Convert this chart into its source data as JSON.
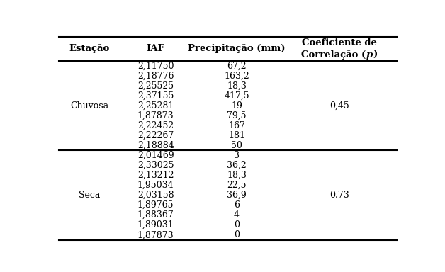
{
  "headers": [
    "Estação",
    "IAF",
    "Precipitação (mm)",
    "Coeficiente de",
    "Correlação (",
    "p",
    ")"
  ],
  "chuvosa_rows": [
    [
      "2,11750",
      "67,2"
    ],
    [
      "2,18776",
      "163,2"
    ],
    [
      "2,25525",
      "18,3"
    ],
    [
      "2,37155",
      "417,5"
    ],
    [
      "2,25281",
      "19"
    ],
    [
      "1,87873",
      "79,5"
    ],
    [
      "2,22452",
      "167"
    ],
    [
      "2,22267",
      "181"
    ],
    [
      "2,18884",
      "50"
    ]
  ],
  "seca_rows": [
    [
      "2,01469",
      "3"
    ],
    [
      "2,33025",
      "36,2"
    ],
    [
      "2,13212",
      "18,3"
    ],
    [
      "1,95034",
      "22,5"
    ],
    [
      "2,03158",
      "36,9"
    ],
    [
      "1,89765",
      "6"
    ],
    [
      "1,88367",
      "4"
    ],
    [
      "1,89031",
      "0"
    ],
    [
      "1,87873",
      "0"
    ]
  ],
  "chuvosa_label": "Chuvosa",
  "seca_label": "Seca",
  "chuvosa_corr": "0,45",
  "seca_corr": "0.73",
  "bg_color": "#ffffff",
  "text_color": "#000000",
  "header_fontsize": 9.5,
  "body_fontsize": 9.0,
  "figsize": [
    6.28,
    3.84
  ],
  "dpi": 100
}
